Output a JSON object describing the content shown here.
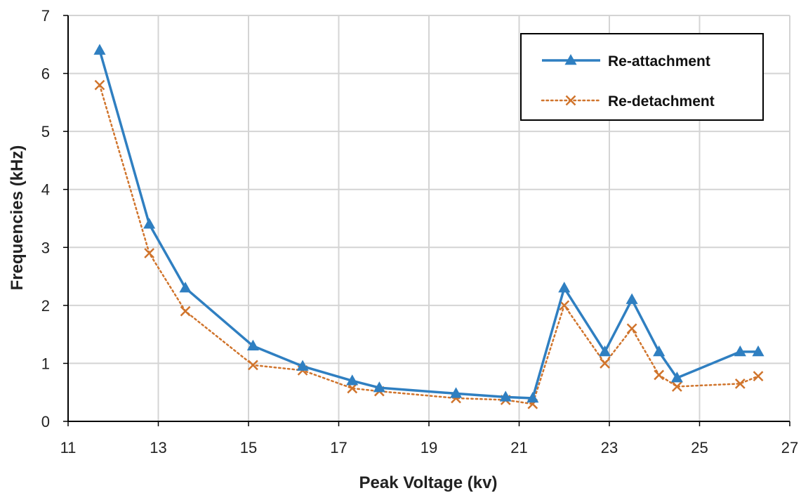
{
  "chart_data": {
    "type": "line",
    "title": "",
    "xlabel": "Peak Voltage (kv)",
    "ylabel": "Frequencies (kHz)",
    "xlim": [
      11,
      27
    ],
    "ylim": [
      0,
      7
    ],
    "xticks": [
      "11",
      "13",
      "15",
      "17",
      "19",
      "21",
      "23",
      "25",
      "27"
    ],
    "yticks": [
      "0",
      "1",
      "2",
      "3",
      "4",
      "5",
      "6",
      "7"
    ],
    "grid": true,
    "legend_position": "top-right",
    "series": [
      {
        "name": "Re-attachment",
        "color": "#2f7fc1",
        "line_style": "solid",
        "marker": "triangle",
        "x": [
          11.7,
          12.8,
          13.6,
          15.1,
          16.2,
          17.3,
          17.9,
          19.6,
          20.7,
          21.3,
          22.0,
          22.9,
          23.5,
          24.1,
          24.5,
          25.9,
          26.3
        ],
        "y": [
          6.4,
          3.4,
          2.3,
          1.3,
          0.95,
          0.7,
          0.58,
          0.48,
          0.42,
          0.4,
          2.3,
          1.2,
          2.1,
          1.2,
          0.75,
          1.2,
          1.2
        ]
      },
      {
        "name": "Re-detachment",
        "color": "#d0742c",
        "line_style": "dotted",
        "marker": "x",
        "x": [
          11.7,
          12.8,
          13.6,
          15.1,
          16.2,
          17.3,
          17.9,
          19.6,
          20.7,
          21.3,
          22.0,
          22.9,
          23.5,
          24.1,
          24.5,
          25.9,
          26.3
        ],
        "y": [
          5.8,
          2.9,
          1.9,
          0.97,
          0.88,
          0.57,
          0.52,
          0.4,
          0.37,
          0.3,
          2.0,
          1.0,
          1.6,
          0.8,
          0.6,
          0.65,
          0.78
        ]
      }
    ]
  }
}
